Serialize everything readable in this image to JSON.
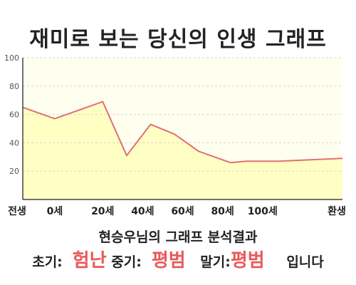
{
  "chart_data": {
    "type": "area",
    "title": "재미로 보는 당신의 인생 그래프",
    "x": [
      0,
      4,
      10,
      13,
      16,
      19,
      22,
      26,
      28,
      32,
      36,
      40
    ],
    "values": [
      65,
      57,
      69,
      31,
      53,
      46,
      34,
      26,
      27,
      27,
      28,
      29
    ],
    "x_tick_positions": [
      0,
      4,
      10,
      15,
      20,
      25,
      30,
      35
    ],
    "x_tick_labels": [
      "전생",
      "0세",
      "20세",
      "40세",
      "60세",
      "80세",
      "100세",
      "환생"
    ],
    "xlim": [
      0,
      40
    ],
    "ylim": [
      0,
      100
    ],
    "y_ticks": [
      20,
      40,
      60,
      80,
      100
    ],
    "grid": true,
    "line_color": "#e07070",
    "fill_color": "#ffffc4",
    "plot_bg": "#fffff0"
  },
  "summary": {
    "heading": "현승우님의 그래프 분석결과",
    "early_label": "초기:",
    "early_value": "험난",
    "mid_label": "중기:",
    "mid_value": "평범",
    "late_label": "말기:",
    "late_value": "평범",
    "ending": "입니다"
  }
}
